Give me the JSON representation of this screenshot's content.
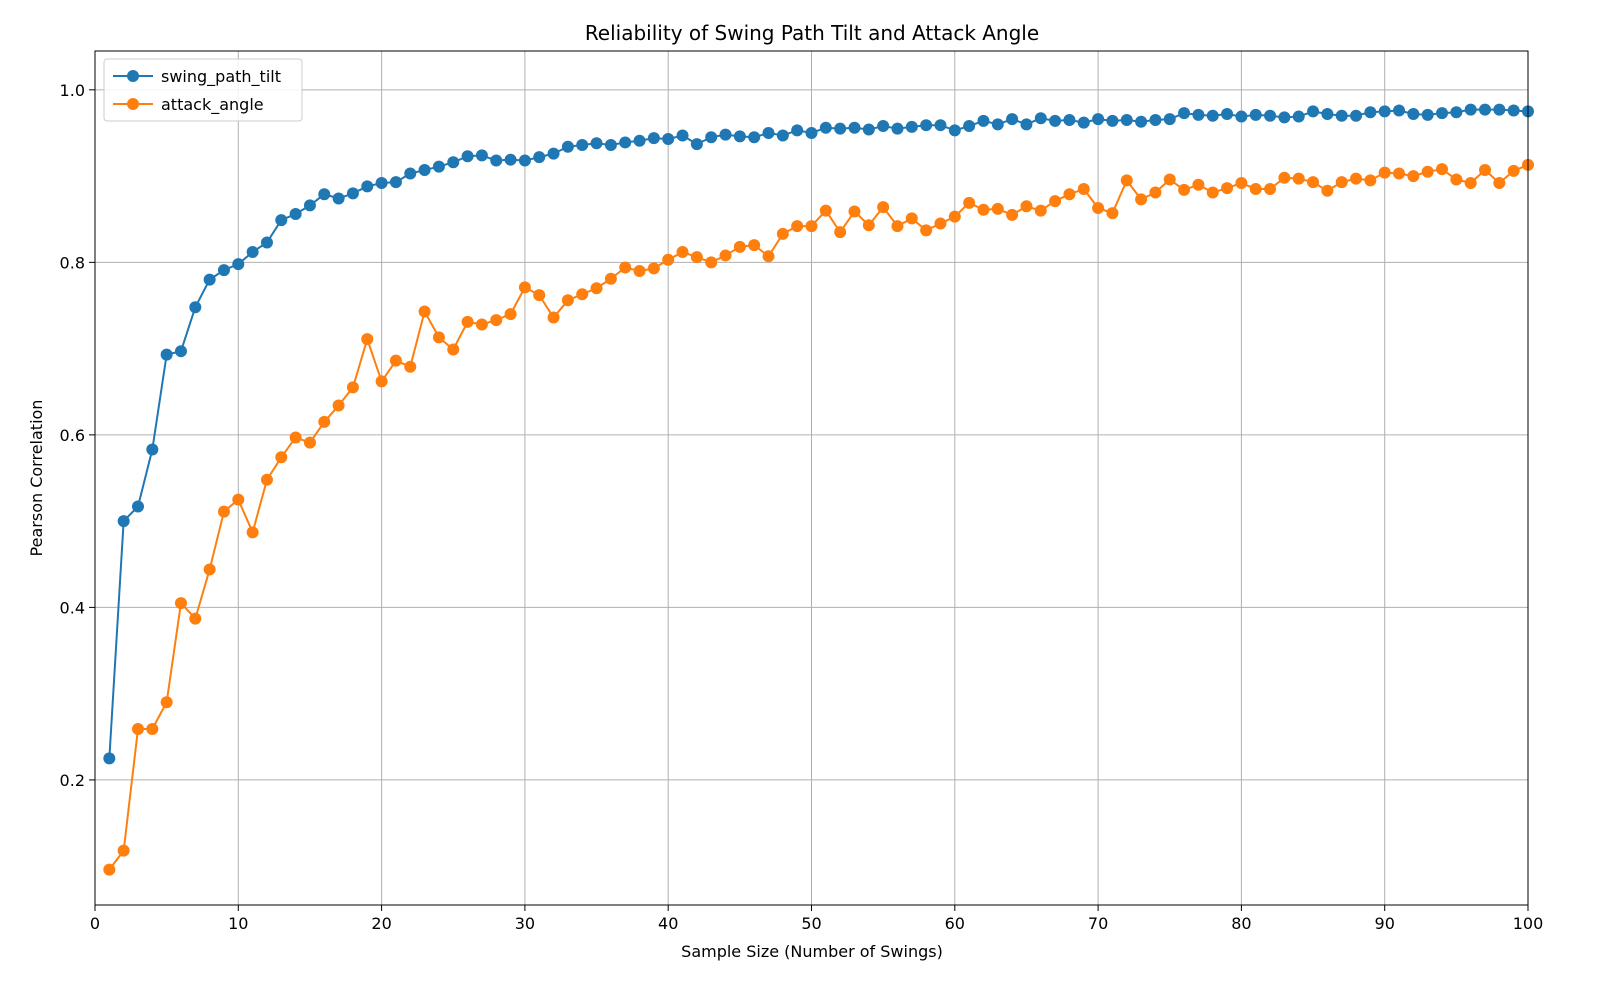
{
  "chart_data": {
    "type": "line",
    "title": "Reliability of Swing Path Tilt and Attack Angle",
    "xlabel": "Sample Size (Number of Swings)",
    "ylabel": "Pearson Correlation",
    "xlim": [
      0,
      100
    ],
    "ylim": [
      0.055,
      1.045
    ],
    "xticks": [
      0,
      10,
      20,
      30,
      40,
      50,
      60,
      70,
      80,
      90,
      100
    ],
    "xtick_labels": [
      "0",
      "10",
      "20",
      "30",
      "40",
      "50",
      "60",
      "70",
      "80",
      "90",
      "100"
    ],
    "yticks": [
      0.2,
      0.4,
      0.6,
      0.8,
      1.0
    ],
    "ytick_labels": [
      "0.2",
      "0.4",
      "0.6",
      "0.8",
      "1.0"
    ],
    "grid": true,
    "legend_position": "top-left",
    "x": [
      1,
      2,
      3,
      4,
      5,
      6,
      7,
      8,
      9,
      10,
      11,
      12,
      13,
      14,
      15,
      16,
      17,
      18,
      19,
      20,
      21,
      22,
      23,
      24,
      25,
      26,
      27,
      28,
      29,
      30,
      31,
      32,
      33,
      34,
      35,
      36,
      37,
      38,
      39,
      40,
      41,
      42,
      43,
      44,
      45,
      46,
      47,
      48,
      49,
      50,
      51,
      52,
      53,
      54,
      55,
      56,
      57,
      58,
      59,
      60,
      61,
      62,
      63,
      64,
      65,
      66,
      67,
      68,
      69,
      70,
      71,
      72,
      73,
      74,
      75,
      76,
      77,
      78,
      79,
      80,
      81,
      82,
      83,
      84,
      85,
      86,
      87,
      88,
      89,
      90,
      91,
      92,
      93,
      94,
      95,
      96,
      97,
      98,
      99,
      100
    ],
    "series": [
      {
        "name": "swing_path_tilt",
        "color": "#1f77b4",
        "values": [
          0.225,
          0.5,
          0.517,
          0.583,
          0.693,
          0.697,
          0.748,
          0.78,
          0.791,
          0.798,
          0.812,
          0.823,
          0.849,
          0.856,
          0.866,
          0.879,
          0.874,
          0.88,
          0.888,
          0.892,
          0.893,
          0.903,
          0.907,
          0.911,
          0.916,
          0.923,
          0.924,
          0.918,
          0.919,
          0.918,
          0.922,
          0.926,
          0.934,
          0.936,
          0.938,
          0.936,
          0.939,
          0.941,
          0.944,
          0.943,
          0.947,
          0.937,
          0.945,
          0.948,
          0.946,
          0.945,
          0.95,
          0.947,
          0.953,
          0.95,
          0.956,
          0.955,
          0.956,
          0.954,
          0.958,
          0.955,
          0.957,
          0.959,
          0.959,
          0.953,
          0.958,
          0.964,
          0.96,
          0.966,
          0.96,
          0.967,
          0.964,
          0.965,
          0.962,
          0.966,
          0.964,
          0.965,
          0.963,
          0.965,
          0.966,
          0.973,
          0.971,
          0.97,
          0.972,
          0.969,
          0.971,
          0.97,
          0.968,
          0.969,
          0.975,
          0.972,
          0.97,
          0.97,
          0.974,
          0.975,
          0.976,
          0.972,
          0.971,
          0.973,
          0.974,
          0.977,
          0.977,
          0.977,
          0.976,
          0.975
        ]
      },
      {
        "name": "attack_angle",
        "color": "#ff7f0e",
        "values": [
          0.096,
          0.118,
          0.259,
          0.259,
          0.29,
          0.405,
          0.387,
          0.444,
          0.511,
          0.525,
          0.487,
          0.548,
          0.574,
          0.597,
          0.591,
          0.615,
          0.634,
          0.655,
          0.711,
          0.662,
          0.686,
          0.679,
          0.743,
          0.713,
          0.699,
          0.731,
          0.728,
          0.733,
          0.74,
          0.771,
          0.762,
          0.736,
          0.756,
          0.763,
          0.77,
          0.781,
          0.794,
          0.79,
          0.793,
          0.803,
          0.812,
          0.806,
          0.8,
          0.808,
          0.818,
          0.82,
          0.807,
          0.833,
          0.842,
          0.842,
          0.86,
          0.835,
          0.859,
          0.843,
          0.864,
          0.842,
          0.851,
          0.837,
          0.845,
          0.853,
          0.869,
          0.861,
          0.862,
          0.855,
          0.865,
          0.86,
          0.871,
          0.879,
          0.885,
          0.863,
          0.857,
          0.895,
          0.873,
          0.881,
          0.896,
          0.884,
          0.89,
          0.881,
          0.886,
          0.892,
          0.885,
          0.885,
          0.898,
          0.897,
          0.893,
          0.883,
          0.893,
          0.897,
          0.895,
          0.904,
          0.903,
          0.9,
          0.905,
          0.908,
          0.896,
          0.892,
          0.907,
          0.892,
          0.906,
          0.913
        ]
      }
    ]
  }
}
